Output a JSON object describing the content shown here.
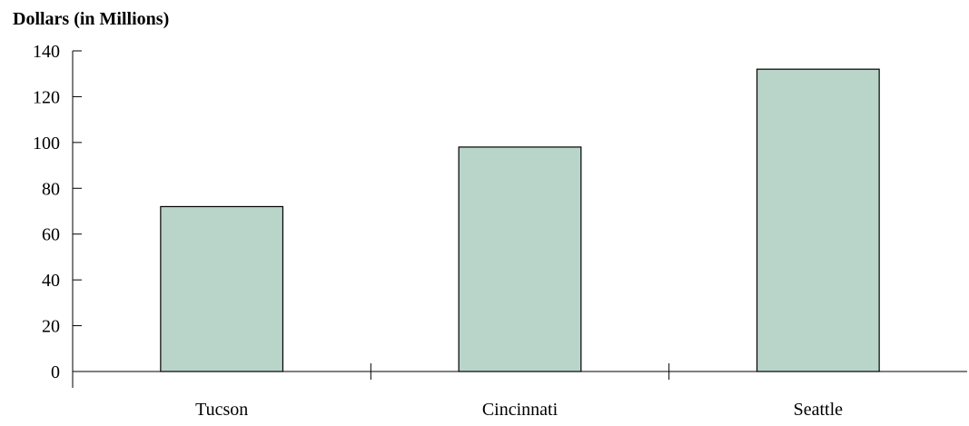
{
  "chart_data": {
    "type": "bar",
    "title": "",
    "xlabel": "",
    "ylabel": "Dollars (in Millions)",
    "categories": [
      "Tucson",
      "Cincinnati",
      "Seattle"
    ],
    "values": [
      72,
      98,
      132
    ],
    "ylim": [
      0,
      140
    ],
    "yticks": [
      "0",
      "20",
      "40",
      "60",
      "80",
      "100",
      "120",
      "140"
    ],
    "grid": false,
    "legend": "none",
    "bar_color": "#b9d5c9",
    "bar_edge_color": "#000000"
  }
}
